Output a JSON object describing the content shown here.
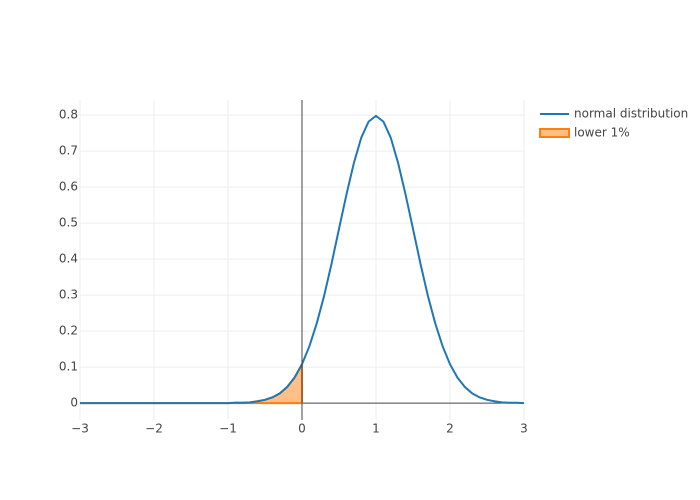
{
  "chart_data": {
    "type": "line",
    "series": [
      {
        "name": "normal distribution",
        "color": "#1f77b4",
        "x": [
          -3,
          -2,
          -1,
          -0.9,
          -0.8,
          -0.7,
          -0.6,
          -0.5,
          -0.4,
          -0.3,
          -0.2,
          -0.1,
          0,
          0.1,
          0.2,
          0.3,
          0.4,
          0.5,
          0.6,
          0.7,
          0.8,
          0.9,
          1,
          1.1,
          1.2,
          1.3,
          1.4,
          1.5,
          1.6,
          1.7,
          1.8,
          1.9,
          2,
          2.1,
          2.2,
          2.3,
          2.4,
          2.5,
          2.6,
          2.7,
          2.8,
          2.9,
          3
        ],
        "values": [
          0,
          0,
          0,
          0.001,
          0.001,
          0.002,
          0.005,
          0.009,
          0.016,
          0.027,
          0.045,
          0.071,
          0.108,
          0.158,
          0.222,
          0.299,
          0.388,
          0.484,
          0.579,
          0.666,
          0.737,
          0.782,
          0.798,
          0.782,
          0.737,
          0.666,
          0.579,
          0.484,
          0.388,
          0.299,
          0.222,
          0.158,
          0.108,
          0.071,
          0.045,
          0.027,
          0.016,
          0.009,
          0.005,
          0.002,
          0.001,
          0.001,
          0
        ]
      },
      {
        "name": "lower 1%",
        "color": "#ff7f0e",
        "fill": true,
        "x": [
          -3,
          -2,
          -1,
          -0.9,
          -0.8,
          -0.7,
          -0.6,
          -0.5,
          -0.4,
          -0.3,
          -0.2,
          -0.1,
          0
        ],
        "values": [
          0,
          0,
          0,
          0.001,
          0.001,
          0.002,
          0.005,
          0.009,
          0.016,
          0.027,
          0.045,
          0.071,
          0.108
        ]
      }
    ],
    "xlim": [
      -3,
      3
    ],
    "xticks": [
      {
        "value": -3,
        "label": "−3"
      },
      {
        "value": -2,
        "label": "−2"
      },
      {
        "value": -1,
        "label": "−1"
      },
      0,
      1,
      2,
      3
    ],
    "ylim": [
      -0.047,
      0.842
    ],
    "yticks": [
      0,
      0.1,
      0.2,
      0.3,
      0.4,
      0.5,
      0.6,
      0.7,
      0.8
    ],
    "grid": true,
    "legend": "right"
  }
}
